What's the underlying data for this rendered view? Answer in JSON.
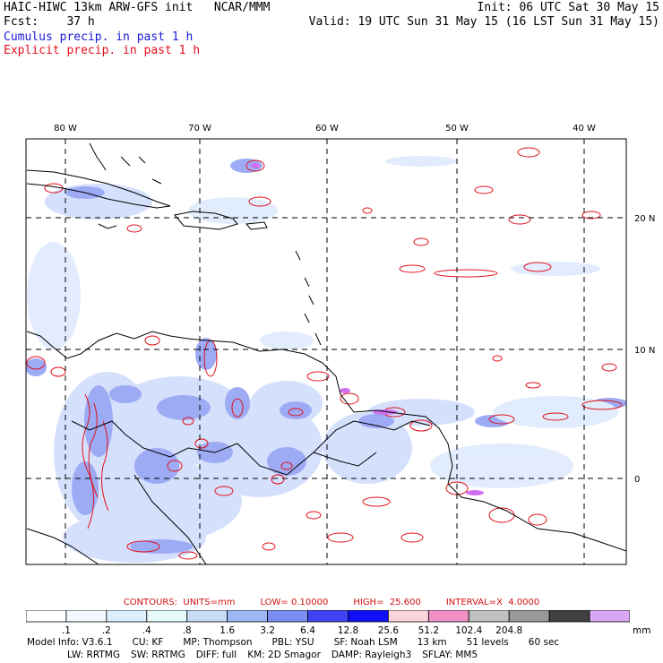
{
  "header": {
    "title": "HAIC-HIWC 13km ARW-GFS init",
    "org": "NCAR/MMM",
    "init": "Init: 06 UTC Sat 30 May 15",
    "fcst_label": "Fcst:",
    "fcst_value": "37 h",
    "valid": "Valid: 19 UTC Sun 31 May 15 (16 LST Sun 31 May 15)",
    "cumulus": "Cumulus precip. in past 1 h",
    "explicit": "Explicit precip. in past 1 h"
  },
  "map": {
    "lon_labels": [
      "80 W",
      "70 W",
      "60 W",
      "50 W",
      "40 W"
    ],
    "lat_labels": [
      "20 N",
      "10 N",
      "0"
    ],
    "colors": {
      "coast": "#000000",
      "grid": "#000000",
      "cumulus": "#4a5cf0",
      "explicit": "#e01018",
      "magenta": "#c040f0"
    }
  },
  "contours": {
    "units": "CONTOURS:  UNITS=mm",
    "low": "LOW= 0.10000",
    "high": "HIGH=  25.600",
    "interval": "INTERVAL=X  4.0000"
  },
  "colorbar": {
    "colors": [
      "#ffffff",
      "#f4f8ff",
      "#ddeeff",
      "#e8fbfb",
      "#c8dcf8",
      "#9db6f4",
      "#7a8df0",
      "#3f43f6",
      "#1010f6",
      "#fad4dc",
      "#f090c4",
      "#c0c0c0",
      "#989898",
      "#404040",
      "#d9a8f2"
    ],
    "labels": [
      ".1",
      ".2",
      ".4",
      ".8",
      "1.6",
      "3.2",
      "6.4",
      "12.8",
      "25.6",
      "51.2",
      "102.4",
      "204.8"
    ],
    "unit": "mm"
  },
  "model_info": {
    "line1": [
      "Model Info: V3.6.1",
      "CU: KF",
      "MP: Thompson",
      "PBL: YSU",
      "SF: Noah LSM",
      "13 km",
      "51 levels",
      "60 sec"
    ],
    "line2": [
      "LW: RRTMG",
      "SW: RRTMG",
      "DIFF: full",
      "KM: 2D Smagor",
      "DAMP: Rayleigh3",
      "SFLAY: MM5"
    ]
  }
}
